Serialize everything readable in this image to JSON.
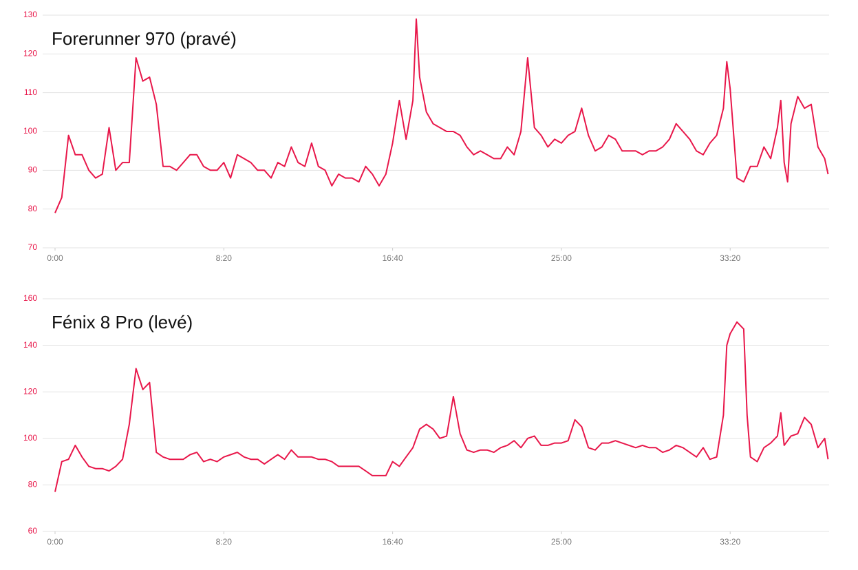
{
  "chart_data": [
    {
      "type": "line",
      "title": "Forerunner 970 (pravé)",
      "color": "#e8174a",
      "grid": true,
      "xlim": [
        0,
        2293
      ],
      "ylim": [
        70,
        130
      ],
      "yticks": [
        70,
        80,
        90,
        100,
        110,
        120,
        130
      ],
      "xticks": [
        {
          "value": 0,
          "label": "0:00"
        },
        {
          "value": 500,
          "label": "8:20"
        },
        {
          "value": 1000,
          "label": "16:40"
        },
        {
          "value": 1500,
          "label": "25:00"
        },
        {
          "value": 2000,
          "label": "33:20"
        }
      ],
      "x": [
        0,
        20,
        40,
        60,
        80,
        100,
        120,
        140,
        160,
        180,
        200,
        220,
        240,
        260,
        280,
        300,
        320,
        340,
        360,
        380,
        400,
        420,
        440,
        460,
        480,
        500,
        520,
        540,
        560,
        580,
        600,
        620,
        640,
        660,
        680,
        700,
        720,
        740,
        760,
        780,
        800,
        820,
        840,
        860,
        880,
        900,
        920,
        940,
        960,
        980,
        1000,
        1020,
        1040,
        1060,
        1070,
        1080,
        1100,
        1120,
        1140,
        1160,
        1180,
        1200,
        1220,
        1240,
        1260,
        1280,
        1300,
        1320,
        1340,
        1360,
        1380,
        1400,
        1420,
        1440,
        1460,
        1480,
        1500,
        1520,
        1540,
        1560,
        1580,
        1600,
        1620,
        1640,
        1660,
        1680,
        1700,
        1720,
        1740,
        1760,
        1780,
        1800,
        1820,
        1840,
        1860,
        1880,
        1900,
        1920,
        1940,
        1960,
        1980,
        1990,
        2000,
        2020,
        2040,
        2060,
        2080,
        2100,
        2120,
        2140,
        2150,
        2160,
        2170,
        2180,
        2200,
        2220,
        2240,
        2260,
        2280,
        2290
      ],
      "values": [
        79,
        83,
        99,
        94,
        94,
        90,
        88,
        89,
        101,
        90,
        92,
        92,
        119,
        113,
        114,
        107,
        91,
        91,
        90,
        92,
        94,
        94,
        91,
        90,
        90,
        92,
        88,
        94,
        93,
        92,
        90,
        90,
        88,
        92,
        91,
        96,
        92,
        91,
        97,
        91,
        90,
        86,
        89,
        88,
        88,
        87,
        91,
        89,
        86,
        89,
        97,
        108,
        98,
        108,
        129,
        114,
        105,
        102,
        101,
        100,
        100,
        99,
        96,
        94,
        95,
        94,
        93,
        93,
        96,
        94,
        100,
        119,
        101,
        99,
        96,
        98,
        97,
        99,
        100,
        106,
        99,
        95,
        96,
        99,
        98,
        95,
        95,
        95,
        94,
        95,
        95,
        96,
        98,
        102,
        100,
        98,
        95,
        94,
        97,
        99,
        106,
        118,
        111,
        88,
        87,
        91,
        91,
        96,
        93,
        101,
        108,
        92,
        87,
        102,
        109,
        106,
        107,
        96,
        93,
        89
      ]
    },
    {
      "type": "line",
      "title": "Fénix 8 Pro (levé)",
      "color": "#e8174a",
      "grid": true,
      "xlim": [
        0,
        2293
      ],
      "ylim": [
        60,
        160
      ],
      "yticks": [
        60,
        80,
        100,
        120,
        140,
        160
      ],
      "xticks": [
        {
          "value": 0,
          "label": "0:00"
        },
        {
          "value": 500,
          "label": "8:20"
        },
        {
          "value": 1000,
          "label": "16:40"
        },
        {
          "value": 1500,
          "label": "25:00"
        },
        {
          "value": 2000,
          "label": "33:20"
        }
      ],
      "x": [
        0,
        20,
        40,
        60,
        80,
        100,
        120,
        140,
        160,
        180,
        200,
        220,
        240,
        260,
        280,
        300,
        320,
        340,
        360,
        380,
        400,
        420,
        440,
        460,
        480,
        500,
        520,
        540,
        560,
        580,
        600,
        620,
        640,
        660,
        680,
        700,
        720,
        740,
        760,
        780,
        800,
        820,
        840,
        860,
        880,
        900,
        920,
        940,
        960,
        980,
        1000,
        1020,
        1040,
        1060,
        1080,
        1100,
        1120,
        1140,
        1160,
        1180,
        1200,
        1220,
        1240,
        1260,
        1280,
        1300,
        1320,
        1340,
        1360,
        1380,
        1400,
        1420,
        1440,
        1460,
        1480,
        1500,
        1520,
        1540,
        1560,
        1580,
        1600,
        1620,
        1640,
        1660,
        1680,
        1700,
        1720,
        1740,
        1760,
        1780,
        1800,
        1820,
        1840,
        1860,
        1880,
        1900,
        1920,
        1940,
        1960,
        1980,
        1990,
        2000,
        2020,
        2040,
        2050,
        2060,
        2080,
        2100,
        2120,
        2140,
        2150,
        2160,
        2180,
        2200,
        2220,
        2240,
        2260,
        2280,
        2290
      ],
      "values": [
        77,
        90,
        91,
        97,
        92,
        88,
        87,
        87,
        86,
        88,
        91,
        106,
        130,
        121,
        124,
        94,
        92,
        91,
        91,
        91,
        93,
        94,
        90,
        91,
        90,
        92,
        93,
        94,
        92,
        91,
        91,
        89,
        91,
        93,
        91,
        95,
        92,
        92,
        92,
        91,
        91,
        90,
        88,
        88,
        88,
        88,
        86,
        84,
        84,
        84,
        90,
        88,
        92,
        96,
        104,
        106,
        104,
        100,
        101,
        118,
        102,
        95,
        94,
        95,
        95,
        94,
        96,
        97,
        99,
        96,
        100,
        101,
        97,
        97,
        98,
        98,
        99,
        108,
        105,
        96,
        95,
        98,
        98,
        99,
        98,
        97,
        96,
        97,
        96,
        96,
        94,
        95,
        97,
        96,
        94,
        92,
        96,
        91,
        92,
        110,
        140,
        145,
        150,
        147,
        110,
        92,
        90,
        96,
        98,
        101,
        111,
        97,
        101,
        102,
        109,
        106,
        96,
        100,
        91
      ]
    }
  ]
}
